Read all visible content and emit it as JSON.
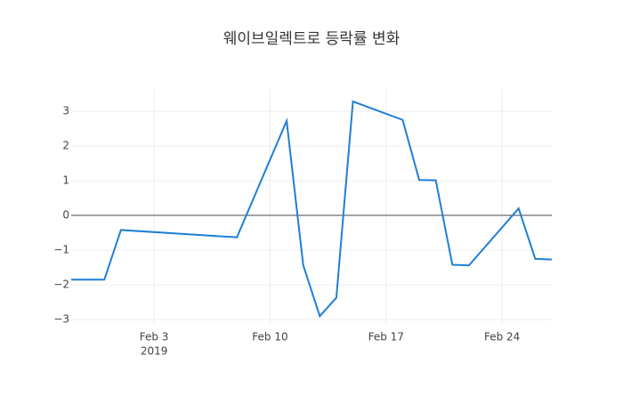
{
  "chart_data": {
    "type": "line",
    "title": "웨이브일렉트로 등락률 변화",
    "x": [
      "2019-01-29",
      "2019-01-31",
      "2019-02-01",
      "2019-02-08",
      "2019-02-11",
      "2019-02-12",
      "2019-02-13",
      "2019-02-14",
      "2019-02-15",
      "2019-02-18",
      "2019-02-19",
      "2019-02-20",
      "2019-02-21",
      "2019-02-22",
      "2019-02-25",
      "2019-02-26",
      "2019-02-27"
    ],
    "series": [
      {
        "color": "#1f7fd6",
        "values": [
          -1.85,
          -1.85,
          -0.42,
          -0.63,
          2.72,
          -1.43,
          -2.9,
          -2.37,
          3.28,
          2.75,
          1.02,
          1.01,
          -1.42,
          -1.44,
          0.2,
          -1.25,
          -1.27
        ]
      }
    ],
    "xlim": [
      "2019-01-29",
      "2019-02-27"
    ],
    "xticks": [
      {
        "value": "2019-02-03",
        "label": "Feb 3",
        "year": "2019"
      },
      {
        "value": "2019-02-10",
        "label": "Feb 10"
      },
      {
        "value": "2019-02-17",
        "label": "Feb 17"
      },
      {
        "value": "2019-02-24",
        "label": "Feb 24"
      }
    ],
    "ylim": [
      -3.15,
      3.64
    ],
    "yticks": [
      {
        "value": -3,
        "label": "−3"
      },
      {
        "value": -2,
        "label": "−2"
      },
      {
        "value": -1,
        "label": "−1"
      },
      0,
      1,
      2,
      3
    ],
    "grid": true,
    "zero_line": true
  }
}
